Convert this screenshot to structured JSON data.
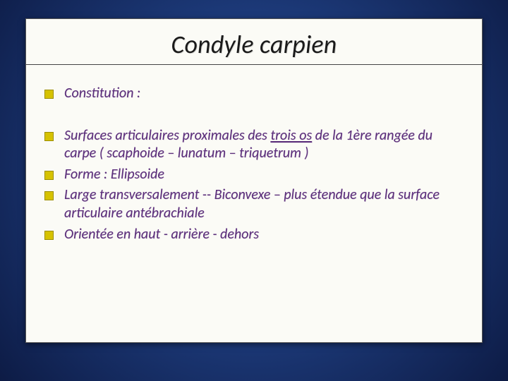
{
  "slide": {
    "title": "Condyle carpien",
    "bullet_color": "#d6c200",
    "bullet_border": "#9c8e00",
    "text_color": "#5a2d7a",
    "background_box": "#fbfbf6",
    "title_color": "#1a1a1a",
    "title_fontsize": 36,
    "body_fontsize": 20,
    "font_style": "italic",
    "gradient_stops": [
      "#2a4f9e",
      "#1c3978",
      "#0e1d48",
      "#020515"
    ],
    "bullets": [
      {
        "text": "Constitution :",
        "spacing": "first"
      },
      {
        "pre": "Surfaces articulaires  proximales des ",
        "u": "trois os",
        "post": " de la 1ère rangée du carpe  ( scaphoide – lunatum – triquetrum )",
        "spacing": "tight"
      },
      {
        "text": "Forme : Ellipsoide",
        "spacing": "tight"
      },
      {
        "text": "Large transversalement  -- Biconvexe – plus étendue que la surface articulaire antébrachiale",
        "spacing": "tight"
      },
      {
        "text": "Orientée en haut -  arrière - dehors",
        "spacing": "tight"
      }
    ]
  }
}
